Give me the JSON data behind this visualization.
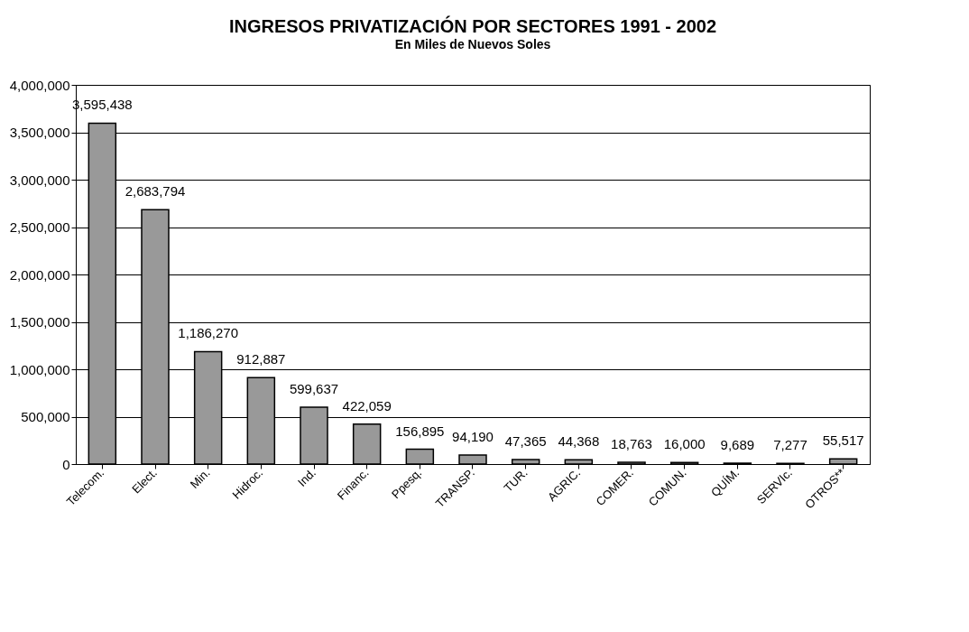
{
  "chart_data": {
    "type": "bar",
    "title": "INGRESOS PRIVATIZACIÓN POR SECTORES 1991 - 2002",
    "subtitle": "En Miles de Nuevos  Soles",
    "categories": [
      "Telecom.",
      "Elect.",
      "Min.",
      "Hidroc.",
      "Ind.",
      "Financ.",
      "Ppesq.",
      "TRANSP.",
      "TUR.",
      "AGRIC.",
      "COMER.",
      "COMUN.",
      "QUÍM.",
      "SERVIc.",
      "OTROS**"
    ],
    "values": [
      3595438,
      2683794,
      1186270,
      912887,
      599637,
      422059,
      156895,
      94190,
      47365,
      44368,
      18763,
      16000,
      9689,
      7277,
      55517
    ],
    "value_labels": [
      "3,595,438",
      "2,683,794",
      "1,186,270",
      "912,887",
      "599,637",
      "422,059",
      "156,895",
      "94,190",
      "47,365",
      "44,368",
      "18,763",
      "16,000",
      "9,689",
      "7,277",
      "55,517"
    ],
    "color": "#999999",
    "ylim": [
      0,
      4000000
    ],
    "yticks": [
      0,
      {
        "value": 500000,
        "label": "500,000"
      },
      {
        "value": 1000000,
        "label": "1,000,000"
      },
      {
        "value": 1500000,
        "label": "1,500,000"
      },
      {
        "value": 2000000,
        "label": "2,000,000"
      },
      {
        "value": 2500000,
        "label": "2,500,000"
      },
      {
        "value": 3000000,
        "label": "3,000,000"
      },
      {
        "value": 3500000,
        "label": "3,500,000"
      },
      {
        "value": 4000000,
        "label": "4,000,000"
      }
    ],
    "grid": "y",
    "data_labels": true
  }
}
